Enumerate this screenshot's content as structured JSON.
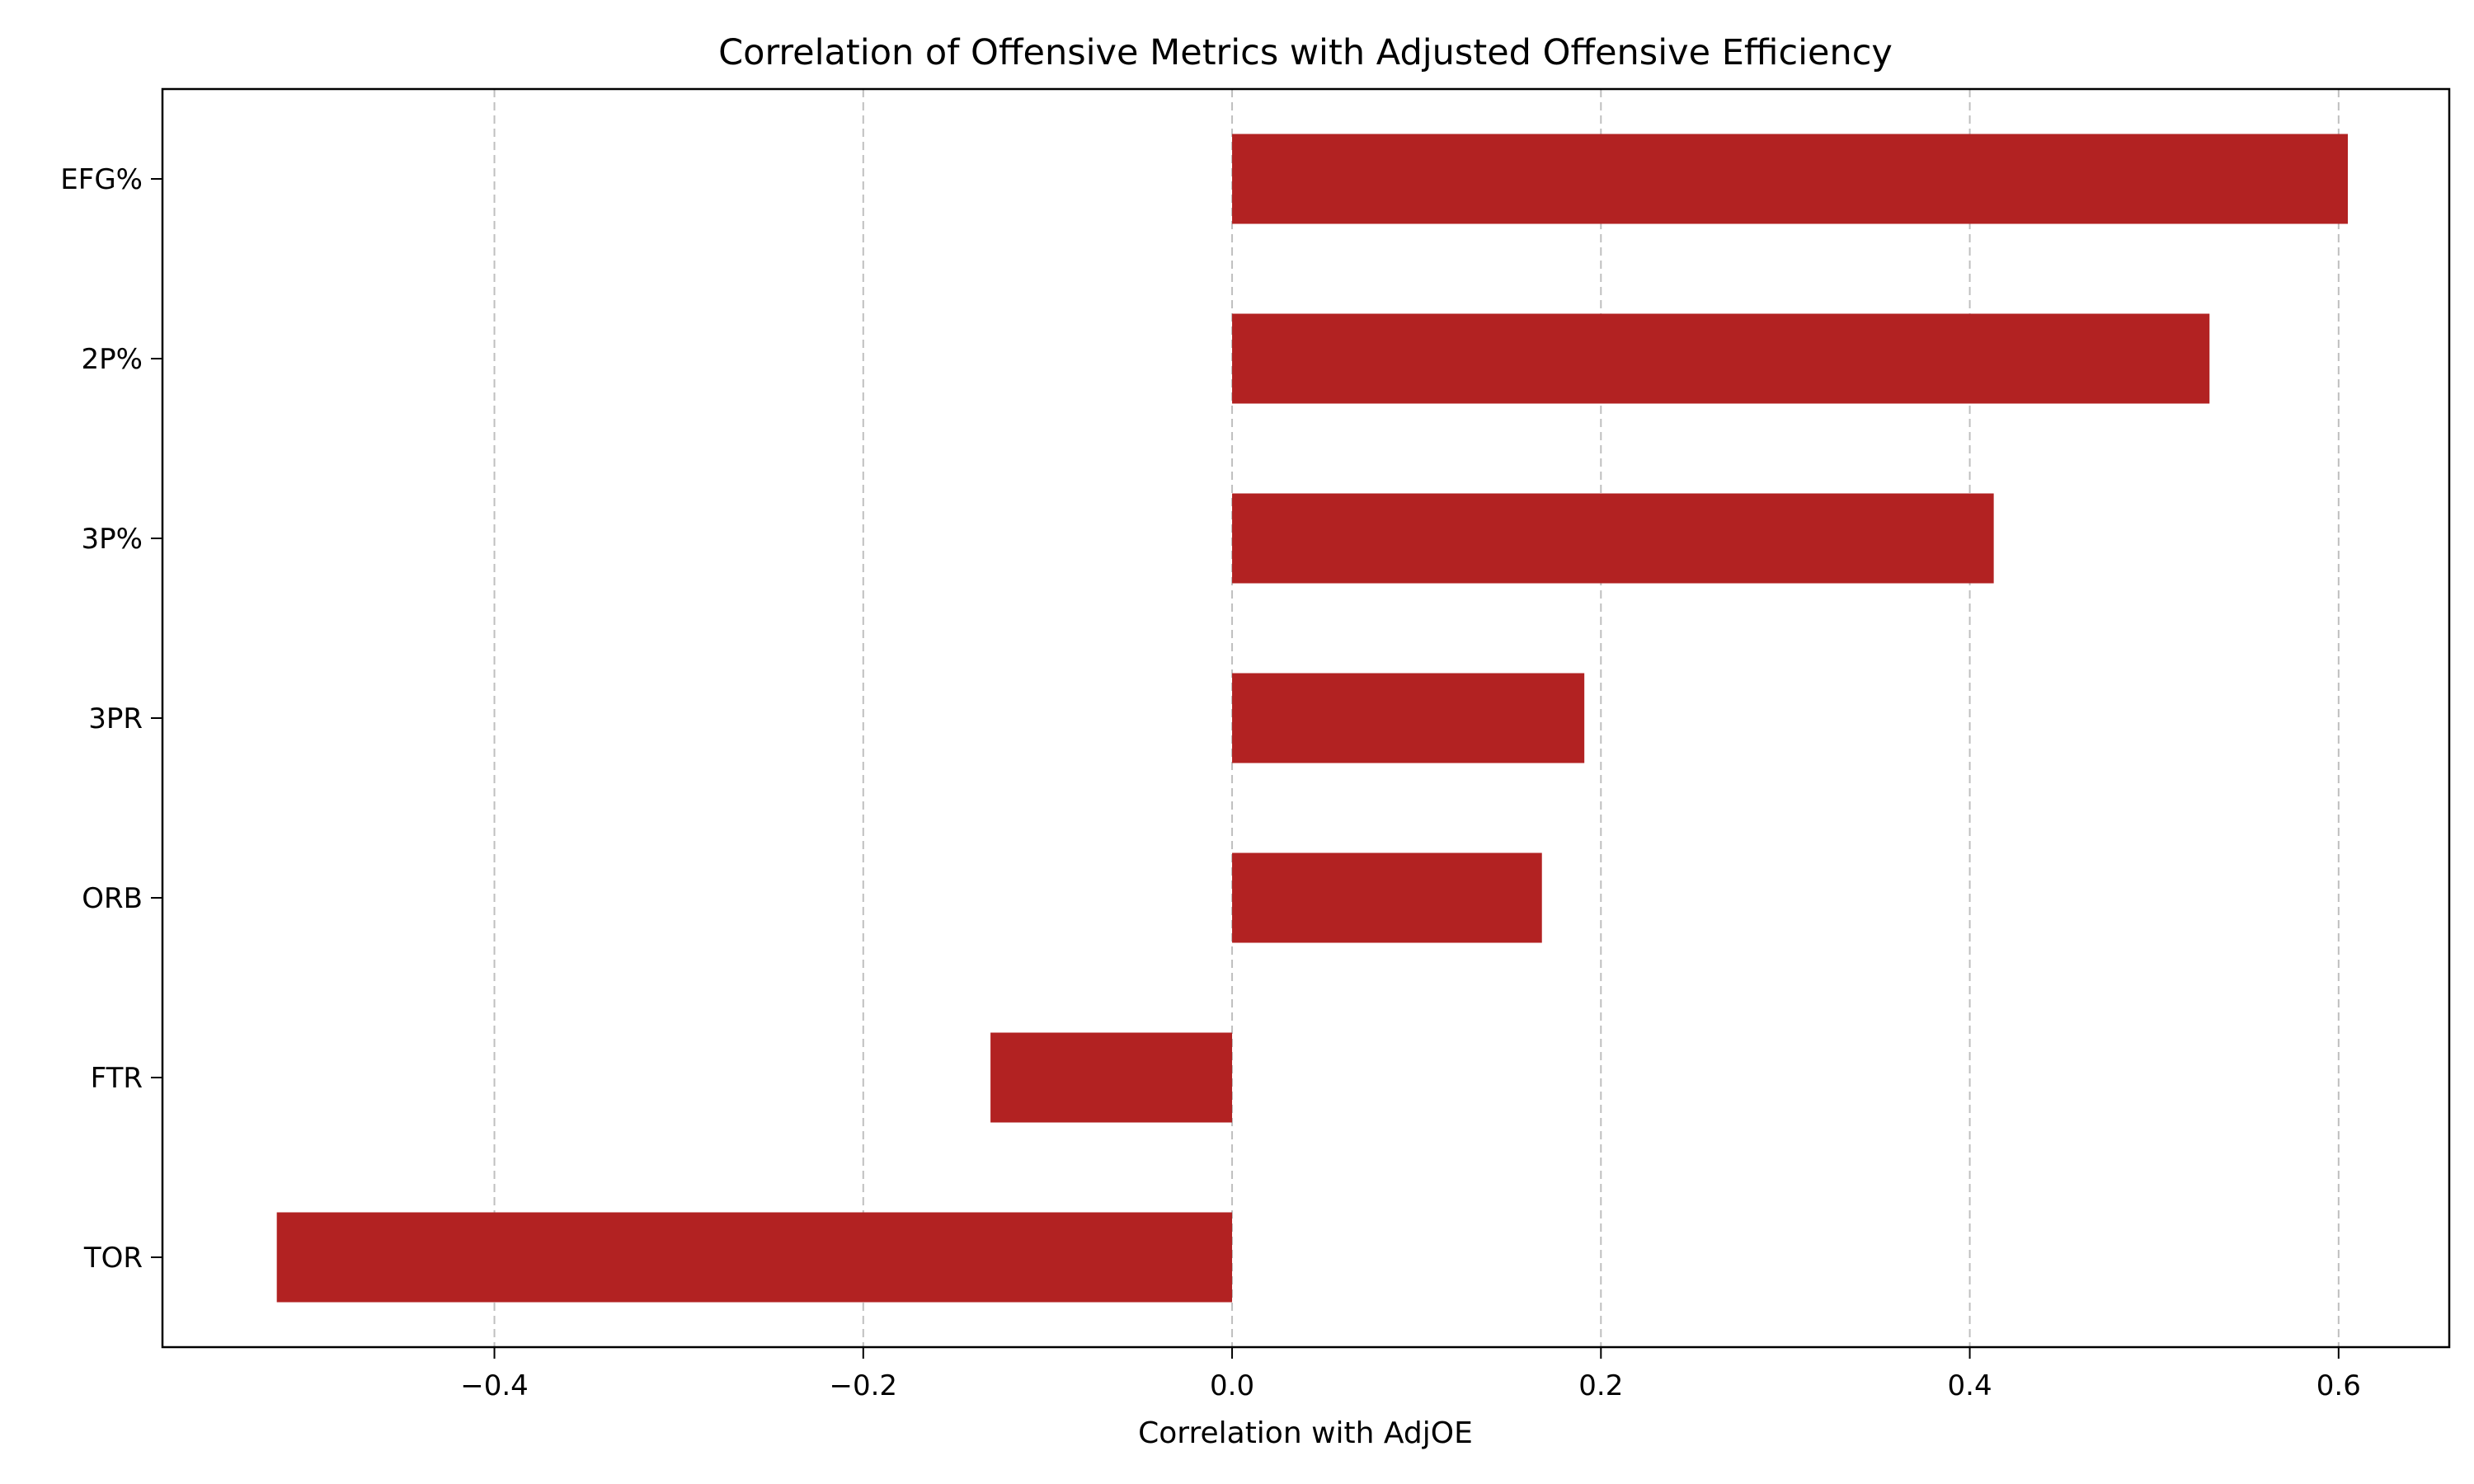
{
  "chart_data": {
    "type": "bar",
    "orientation": "horizontal",
    "title": "Correlation of Offensive Metrics with Adjusted Offensive Efficiency",
    "xlabel": "Correlation with AdjOE",
    "ylabel": "",
    "categories": [
      "EFG%",
      "2P%",
      "3P%",
      "3PR",
      "ORB",
      "FTR",
      "TOR"
    ],
    "values": [
      0.605,
      0.53,
      0.413,
      0.191,
      0.168,
      -0.131,
      -0.518
    ],
    "xlim": [
      -0.58,
      0.66
    ],
    "xticks": [
      -0.4,
      -0.2,
      0.0,
      0.2,
      0.4,
      0.6
    ],
    "xtick_labels": [
      "−0.4",
      "−0.2",
      "0.0",
      "0.2",
      "0.4",
      "0.6"
    ],
    "grid": "x-dashed",
    "legend": "none",
    "bar_color": "#b22222"
  }
}
